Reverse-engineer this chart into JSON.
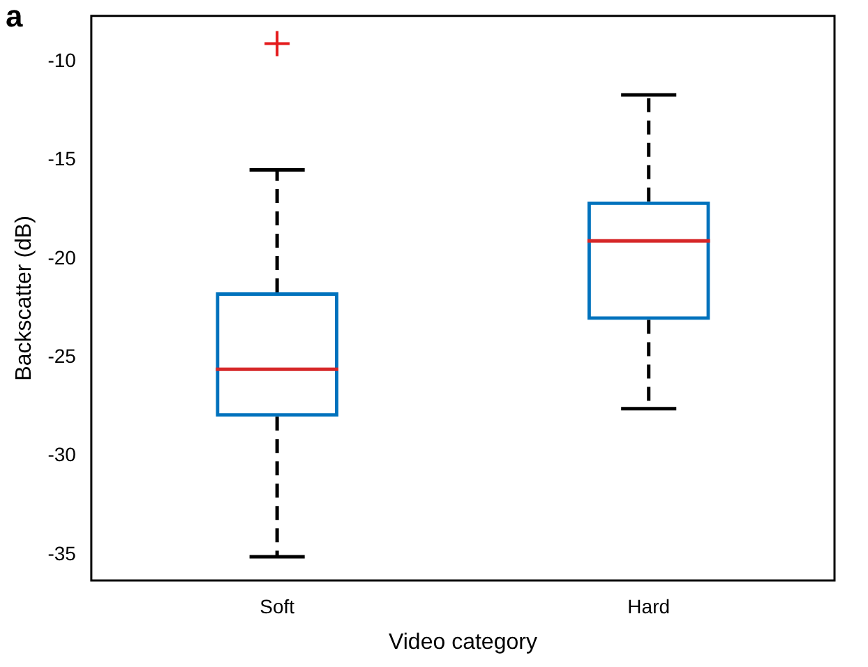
{
  "chart_data": {
    "type": "box",
    "xlabel": "Video category",
    "ylabel": "Backscatter (dB)",
    "annotations": [
      "a"
    ],
    "categories": [
      "Soft",
      "Hard"
    ],
    "color": "#0072bd",
    "boxes": [
      {
        "low": -35.1,
        "q1": -28.0,
        "median": -25.6,
        "q3": -21.7,
        "high": -15.5,
        "outliers": [
          -9.1
        ]
      },
      {
        "low": -27.6,
        "q1": -23.1,
        "median": -19.1,
        "q3": -17.1,
        "high": -11.7
      }
    ],
    "ylim": [
      -36.3,
      -7.7
    ],
    "yticks": [
      -35,
      -30,
      -25,
      -20,
      -15,
      -10
    ],
    "grid": false,
    "legend": false
  }
}
